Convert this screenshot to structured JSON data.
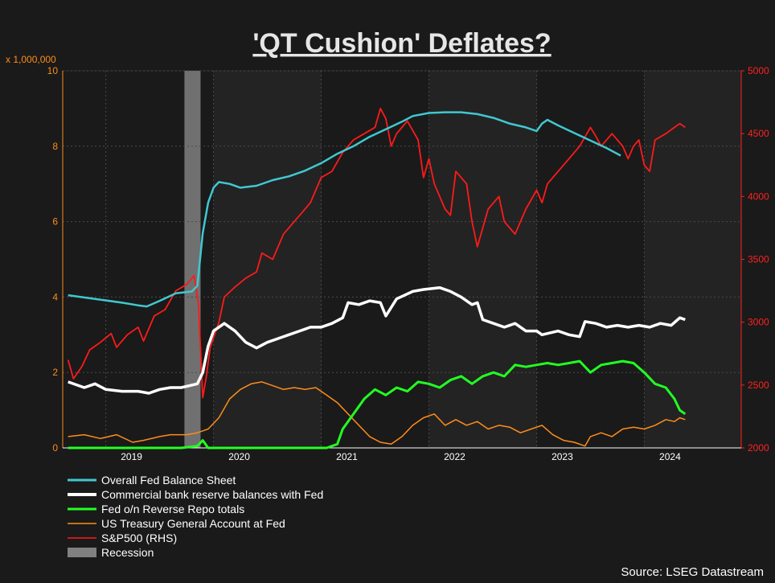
{
  "chart_data": {
    "type": "line",
    "title": "'QT Cushion' Deflates?",
    "source": "Source: LSEG Datastream",
    "left_axis": {
      "unit_label": "x 1,000,000",
      "ylim": [
        0,
        10
      ],
      "ticks": [
        "0",
        "2",
        "4",
        "6",
        "8",
        "10"
      ],
      "color": "#ff8c1a"
    },
    "right_axis": {
      "label": "",
      "ylim": [
        2000,
        5000
      ],
      "ticks": [
        "2000",
        "2500",
        "3000",
        "3500",
        "4000",
        "4500",
        "5000"
      ],
      "color": "#ff2020"
    },
    "x_axis": {
      "range": [
        2018.6,
        2024.9
      ],
      "ticks": [
        "2019",
        "2020",
        "2021",
        "2022",
        "2023",
        "2024"
      ]
    },
    "grid": true,
    "legend_position": "bottom-left",
    "recession": {
      "name": "Recession",
      "start": 2019.73,
      "end": 2019.88,
      "color": "#808080"
    },
    "series": [
      {
        "name": "Overall Fed Balance Sheet",
        "axis": "left",
        "color": "#40c8d0",
        "points": [
          [
            2018.65,
            4.05
          ],
          [
            2018.9,
            3.95
          ],
          [
            2019.15,
            3.85
          ],
          [
            2019.3,
            3.78
          ],
          [
            2019.38,
            3.75
          ],
          [
            2019.5,
            3.9
          ],
          [
            2019.65,
            4.1
          ],
          [
            2019.8,
            4.15
          ],
          [
            2019.85,
            4.3
          ],
          [
            2019.9,
            5.7
          ],
          [
            2019.95,
            6.5
          ],
          [
            2020.0,
            6.9
          ],
          [
            2020.05,
            7.05
          ],
          [
            2020.15,
            7.0
          ],
          [
            2020.25,
            6.9
          ],
          [
            2020.4,
            6.95
          ],
          [
            2020.55,
            7.1
          ],
          [
            2020.7,
            7.2
          ],
          [
            2020.85,
            7.35
          ],
          [
            2021.0,
            7.55
          ],
          [
            2021.15,
            7.8
          ],
          [
            2021.3,
            8.0
          ],
          [
            2021.45,
            8.25
          ],
          [
            2021.6,
            8.45
          ],
          [
            2021.75,
            8.65
          ],
          [
            2021.85,
            8.8
          ],
          [
            2022.0,
            8.88
          ],
          [
            2022.15,
            8.9
          ],
          [
            2022.3,
            8.9
          ],
          [
            2022.45,
            8.85
          ],
          [
            2022.6,
            8.75
          ],
          [
            2022.75,
            8.6
          ],
          [
            2022.9,
            8.5
          ],
          [
            2023.0,
            8.4
          ],
          [
            2023.05,
            8.6
          ],
          [
            2023.1,
            8.7
          ],
          [
            2023.2,
            8.55
          ],
          [
            2023.35,
            8.35
          ],
          [
            2023.5,
            8.15
          ],
          [
            2023.65,
            7.95
          ],
          [
            2023.78,
            7.75
          ]
        ]
      },
      {
        "name": "Commercial bank reserve balances with Fed",
        "axis": "left",
        "color": "#ffffff",
        "points": [
          [
            2018.65,
            1.75
          ],
          [
            2018.8,
            1.6
          ],
          [
            2018.9,
            1.7
          ],
          [
            2019.0,
            1.55
          ],
          [
            2019.15,
            1.5
          ],
          [
            2019.3,
            1.5
          ],
          [
            2019.4,
            1.45
          ],
          [
            2019.5,
            1.55
          ],
          [
            2019.6,
            1.6
          ],
          [
            2019.7,
            1.6
          ],
          [
            2019.85,
            1.7
          ],
          [
            2019.9,
            2.0
          ],
          [
            2019.95,
            2.7
          ],
          [
            2020.0,
            3.1
          ],
          [
            2020.1,
            3.3
          ],
          [
            2020.2,
            3.1
          ],
          [
            2020.3,
            2.8
          ],
          [
            2020.4,
            2.65
          ],
          [
            2020.5,
            2.8
          ],
          [
            2020.6,
            2.9
          ],
          [
            2020.7,
            3.0
          ],
          [
            2020.8,
            3.1
          ],
          [
            2020.9,
            3.2
          ],
          [
            2021.0,
            3.2
          ],
          [
            2021.1,
            3.3
          ],
          [
            2021.2,
            3.45
          ],
          [
            2021.25,
            3.85
          ],
          [
            2021.35,
            3.8
          ],
          [
            2021.45,
            3.9
          ],
          [
            2021.55,
            3.85
          ],
          [
            2021.6,
            3.5
          ],
          [
            2021.7,
            3.95
          ],
          [
            2021.85,
            4.15
          ],
          [
            2021.95,
            4.2
          ],
          [
            2022.1,
            4.25
          ],
          [
            2022.2,
            4.15
          ],
          [
            2022.3,
            4.0
          ],
          [
            2022.4,
            3.8
          ],
          [
            2022.45,
            3.85
          ],
          [
            2022.5,
            3.4
          ],
          [
            2022.6,
            3.3
          ],
          [
            2022.7,
            3.2
          ],
          [
            2022.8,
            3.3
          ],
          [
            2022.9,
            3.1
          ],
          [
            2023.0,
            3.1
          ],
          [
            2023.05,
            3.0
          ],
          [
            2023.2,
            3.1
          ],
          [
            2023.3,
            3.0
          ],
          [
            2023.4,
            2.95
          ],
          [
            2023.45,
            3.35
          ],
          [
            2023.55,
            3.3
          ],
          [
            2023.65,
            3.2
          ],
          [
            2023.75,
            3.25
          ],
          [
            2023.85,
            3.2
          ],
          [
            2023.95,
            3.25
          ],
          [
            2024.05,
            3.2
          ],
          [
            2024.15,
            3.3
          ],
          [
            2024.25,
            3.25
          ],
          [
            2024.33,
            3.45
          ],
          [
            2024.38,
            3.4
          ]
        ]
      },
      {
        "name": "Fed o/n Reverse Repo totals",
        "axis": "left",
        "color": "#22ff22",
        "points": [
          [
            2018.65,
            0.0
          ],
          [
            2019.7,
            0.0
          ],
          [
            2019.85,
            0.05
          ],
          [
            2019.9,
            0.2
          ],
          [
            2019.95,
            0.0
          ],
          [
            2020.7,
            0.0
          ],
          [
            2021.05,
            0.0
          ],
          [
            2021.15,
            0.1
          ],
          [
            2021.2,
            0.5
          ],
          [
            2021.3,
            0.9
          ],
          [
            2021.4,
            1.3
          ],
          [
            2021.5,
            1.55
          ],
          [
            2021.6,
            1.4
          ],
          [
            2021.7,
            1.6
          ],
          [
            2021.8,
            1.5
          ],
          [
            2021.9,
            1.75
          ],
          [
            2022.0,
            1.7
          ],
          [
            2022.1,
            1.6
          ],
          [
            2022.2,
            1.8
          ],
          [
            2022.3,
            1.9
          ],
          [
            2022.4,
            1.7
          ],
          [
            2022.5,
            1.9
          ],
          [
            2022.6,
            2.0
          ],
          [
            2022.7,
            1.9
          ],
          [
            2022.8,
            2.2
          ],
          [
            2022.9,
            2.15
          ],
          [
            2023.0,
            2.2
          ],
          [
            2023.1,
            2.25
          ],
          [
            2023.2,
            2.2
          ],
          [
            2023.3,
            2.25
          ],
          [
            2023.4,
            2.3
          ],
          [
            2023.5,
            2.0
          ],
          [
            2023.6,
            2.2
          ],
          [
            2023.7,
            2.25
          ],
          [
            2023.8,
            2.3
          ],
          [
            2023.9,
            2.25
          ],
          [
            2024.0,
            2.0
          ],
          [
            2024.1,
            1.7
          ],
          [
            2024.2,
            1.6
          ],
          [
            2024.28,
            1.3
          ],
          [
            2024.33,
            1.0
          ],
          [
            2024.38,
            0.9
          ]
        ]
      },
      {
        "name": "US Treasury General Account at Fed",
        "axis": "left",
        "color": "#ff8c1a",
        "points": [
          [
            2018.65,
            0.3
          ],
          [
            2018.8,
            0.35
          ],
          [
            2018.95,
            0.25
          ],
          [
            2019.1,
            0.35
          ],
          [
            2019.25,
            0.15
          ],
          [
            2019.35,
            0.2
          ],
          [
            2019.5,
            0.3
          ],
          [
            2019.6,
            0.35
          ],
          [
            2019.75,
            0.35
          ],
          [
            2019.85,
            0.4
          ],
          [
            2019.95,
            0.5
          ],
          [
            2020.05,
            0.8
          ],
          [
            2020.15,
            1.3
          ],
          [
            2020.25,
            1.55
          ],
          [
            2020.35,
            1.7
          ],
          [
            2020.45,
            1.75
          ],
          [
            2020.55,
            1.65
          ],
          [
            2020.65,
            1.55
          ],
          [
            2020.75,
            1.6
          ],
          [
            2020.85,
            1.55
          ],
          [
            2020.95,
            1.6
          ],
          [
            2021.05,
            1.4
          ],
          [
            2021.15,
            1.2
          ],
          [
            2021.25,
            0.9
          ],
          [
            2021.35,
            0.6
          ],
          [
            2021.45,
            0.3
          ],
          [
            2021.55,
            0.15
          ],
          [
            2021.65,
            0.1
          ],
          [
            2021.75,
            0.3
          ],
          [
            2021.85,
            0.6
          ],
          [
            2021.95,
            0.8
          ],
          [
            2022.05,
            0.9
          ],
          [
            2022.15,
            0.6
          ],
          [
            2022.25,
            0.75
          ],
          [
            2022.35,
            0.6
          ],
          [
            2022.45,
            0.7
          ],
          [
            2022.55,
            0.5
          ],
          [
            2022.65,
            0.6
          ],
          [
            2022.75,
            0.55
          ],
          [
            2022.85,
            0.4
          ],
          [
            2022.95,
            0.5
          ],
          [
            2023.05,
            0.6
          ],
          [
            2023.15,
            0.35
          ],
          [
            2023.25,
            0.2
          ],
          [
            2023.35,
            0.15
          ],
          [
            2023.45,
            0.05
          ],
          [
            2023.5,
            0.3
          ],
          [
            2023.6,
            0.4
          ],
          [
            2023.7,
            0.3
          ],
          [
            2023.8,
            0.5
          ],
          [
            2023.9,
            0.55
          ],
          [
            2024.0,
            0.5
          ],
          [
            2024.1,
            0.6
          ],
          [
            2024.2,
            0.75
          ],
          [
            2024.28,
            0.7
          ],
          [
            2024.33,
            0.8
          ],
          [
            2024.38,
            0.75
          ]
        ]
      },
      {
        "name": "S&P500 (RHS)",
        "axis": "right",
        "color": "#ff1a1a",
        "points": [
          [
            2018.65,
            2700
          ],
          [
            2018.7,
            2550
          ],
          [
            2018.78,
            2650
          ],
          [
            2018.85,
            2780
          ],
          [
            2018.95,
            2840
          ],
          [
            2019.05,
            2910
          ],
          [
            2019.1,
            2800
          ],
          [
            2019.2,
            2900
          ],
          [
            2019.3,
            2960
          ],
          [
            2019.35,
            2850
          ],
          [
            2019.45,
            3050
          ],
          [
            2019.55,
            3100
          ],
          [
            2019.65,
            3250
          ],
          [
            2019.75,
            3300
          ],
          [
            2019.82,
            3370
          ],
          [
            2019.86,
            3150
          ],
          [
            2019.9,
            2400
          ],
          [
            2019.93,
            2550
          ],
          [
            2019.97,
            2800
          ],
          [
            2020.05,
            3000
          ],
          [
            2020.1,
            3200
          ],
          [
            2020.2,
            3280
          ],
          [
            2020.3,
            3350
          ],
          [
            2020.4,
            3400
          ],
          [
            2020.45,
            3550
          ],
          [
            2020.55,
            3500
          ],
          [
            2020.65,
            3700
          ],
          [
            2020.75,
            3800
          ],
          [
            2020.8,
            3850
          ],
          [
            2020.9,
            3950
          ],
          [
            2021.0,
            4150
          ],
          [
            2021.1,
            4200
          ],
          [
            2021.2,
            4350
          ],
          [
            2021.3,
            4450
          ],
          [
            2021.4,
            4500
          ],
          [
            2021.5,
            4550
          ],
          [
            2021.55,
            4700
          ],
          [
            2021.6,
            4620
          ],
          [
            2021.65,
            4400
          ],
          [
            2021.7,
            4500
          ],
          [
            2021.8,
            4600
          ],
          [
            2021.9,
            4450
          ],
          [
            2021.95,
            4150
          ],
          [
            2022.0,
            4300
          ],
          [
            2022.05,
            4100
          ],
          [
            2022.1,
            4000
          ],
          [
            2022.15,
            3900
          ],
          [
            2022.2,
            3850
          ],
          [
            2022.25,
            4200
          ],
          [
            2022.35,
            4100
          ],
          [
            2022.4,
            3800
          ],
          [
            2022.45,
            3600
          ],
          [
            2022.5,
            3750
          ],
          [
            2022.55,
            3900
          ],
          [
            2022.65,
            4000
          ],
          [
            2022.7,
            3800
          ],
          [
            2022.8,
            3700
          ],
          [
            2022.9,
            3900
          ],
          [
            2023.0,
            4050
          ],
          [
            2023.05,
            3950
          ],
          [
            2023.1,
            4100
          ],
          [
            2023.2,
            4200
          ],
          [
            2023.3,
            4300
          ],
          [
            2023.4,
            4400
          ],
          [
            2023.5,
            4550
          ],
          [
            2023.55,
            4480
          ],
          [
            2023.6,
            4400
          ],
          [
            2023.7,
            4500
          ],
          [
            2023.8,
            4400
          ],
          [
            2023.85,
            4300
          ],
          [
            2023.9,
            4400
          ],
          [
            2023.95,
            4450
          ],
          [
            2024.0,
            4250
          ],
          [
            2024.05,
            4200
          ],
          [
            2024.1,
            4450
          ],
          [
            2024.2,
            4500
          ],
          [
            2024.28,
            4550
          ],
          [
            2024.33,
            4580
          ],
          [
            2024.38,
            4550
          ]
        ]
      }
    ]
  }
}
